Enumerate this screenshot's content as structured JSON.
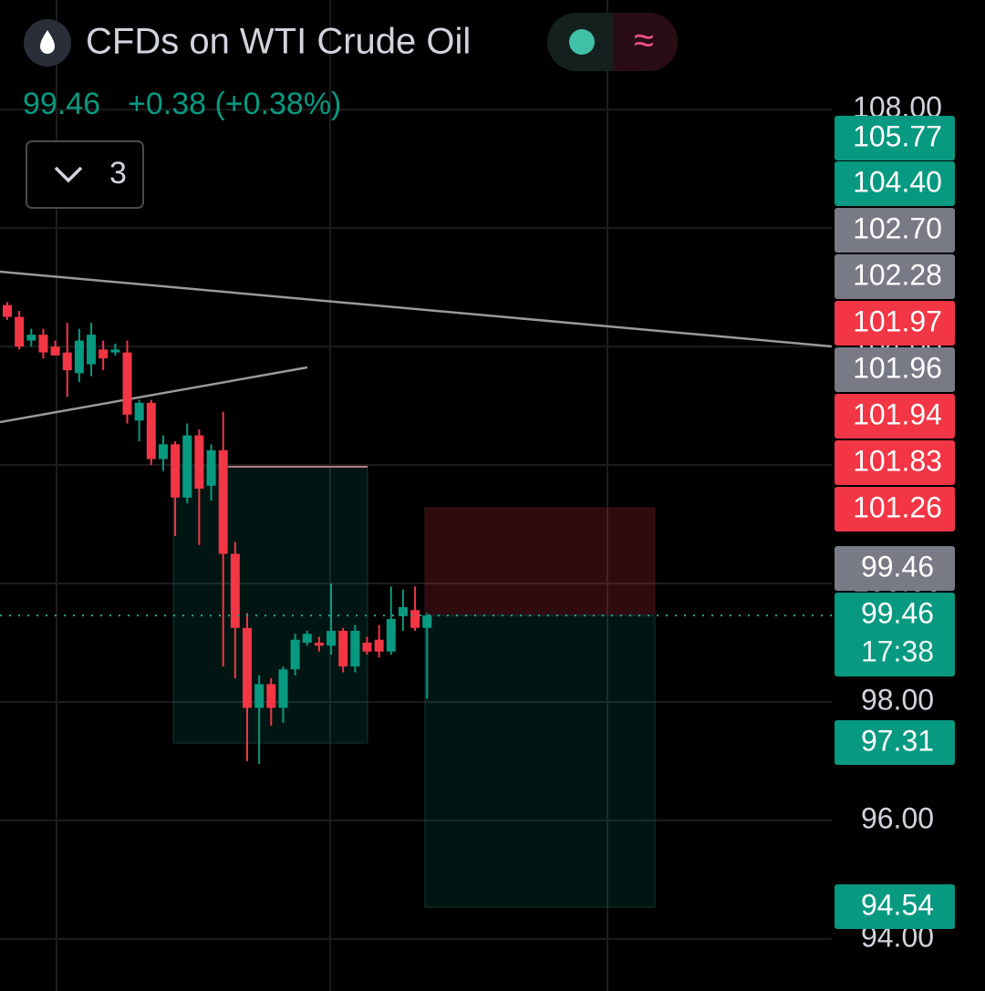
{
  "header": {
    "title": "CFDs on WTI Crude Oil",
    "change": "+0.38 (+0.38%)",
    "indicators": "3"
  },
  "chart_data": {
    "type": "candlestick",
    "last_price": 99.46,
    "open": [
      104.7,
      104.5,
      104.1,
      104.2,
      104.0,
      103.9,
      103.55,
      103.7,
      103.95,
      103.9,
      103.9,
      102.75,
      103.05,
      102.1,
      102.35,
      101.45,
      102.5,
      101.65,
      102.25,
      100.5,
      99.25,
      97.9,
      98.3,
      97.9,
      98.55,
      99.0,
      99.0,
      98.95,
      99.2,
      98.6,
      99.0,
      99.05,
      98.85,
      99.45,
      99.55,
      99.25
    ],
    "high": [
      104.75,
      104.6,
      104.3,
      104.3,
      104.1,
      104.4,
      104.3,
      104.4,
      104.1,
      104.05,
      104.1,
      103.1,
      103.1,
      102.5,
      102.4,
      102.7,
      102.6,
      102.35,
      102.9,
      100.7,
      99.5,
      98.45,
      98.4,
      98.6,
      99.15,
      99.2,
      99.1,
      100.0,
      99.25,
      99.3,
      99.1,
      99.3,
      99.95,
      99.9,
      99.95,
      99.5
    ],
    "low": [
      104.45,
      103.95,
      104.0,
      103.8,
      103.85,
      103.15,
      103.4,
      103.5,
      103.6,
      103.85,
      102.7,
      102.4,
      102.0,
      101.9,
      100.8,
      101.35,
      100.65,
      101.4,
      98.6,
      98.4,
      97.0,
      96.95,
      97.6,
      97.65,
      98.45,
      98.95,
      98.85,
      98.8,
      98.5,
      98.5,
      98.8,
      98.75,
      98.8,
      99.2,
      99.2,
      98.05
    ],
    "close": [
      104.5,
      104.0,
      104.2,
      103.9,
      103.85,
      103.6,
      104.1,
      104.2,
      103.8,
      103.95,
      102.85,
      103.05,
      102.1,
      102.35,
      101.45,
      102.5,
      101.6,
      102.25,
      100.5,
      99.25,
      97.9,
      98.3,
      97.9,
      98.55,
      99.05,
      99.15,
      98.95,
      99.2,
      98.6,
      99.2,
      98.85,
      98.85,
      99.4,
      99.6,
      99.25,
      99.46
    ],
    "up_color": "#089981",
    "down_color": "#f23645",
    "ylim": [
      93.12,
      109.85
    ],
    "yticks": [
      {
        "value": 94,
        "label": "94.00"
      },
      {
        "value": 96,
        "label": "96.00"
      },
      {
        "value": 98,
        "label": "98.00"
      },
      {
        "value": 100,
        "label": "100.00"
      },
      {
        "value": 102,
        "label": "102.00"
      },
      {
        "value": 104,
        "label": "104.00"
      },
      {
        "value": 106,
        "label": "106.00"
      },
      {
        "value": 108,
        "label": "108.00"
      }
    ],
    "grid": true,
    "price_tags": [
      {
        "label": "105.77",
        "color": "#089981"
      },
      {
        "label": "104.40",
        "color": "#089981"
      },
      {
        "label": "102.70",
        "color": "#787b86"
      },
      {
        "label": "102.28",
        "color": "#787b86"
      },
      {
        "label": "101.97",
        "color": "#f23645"
      },
      {
        "label": "101.96",
        "color": "#787b86"
      },
      {
        "label": "101.94",
        "color": "#f23645"
      },
      {
        "label": "101.83",
        "color": "#f23645"
      },
      {
        "label": "101.26",
        "color": "#f23645"
      },
      {
        "label": "99.46",
        "color": "#787b86"
      },
      {
        "label": "99.46",
        "color": "#089981",
        "countdown": "17:38"
      },
      {
        "label": "97.31",
        "color": "#089981"
      },
      {
        "label": "94.54",
        "color": "#089981"
      }
    ]
  }
}
